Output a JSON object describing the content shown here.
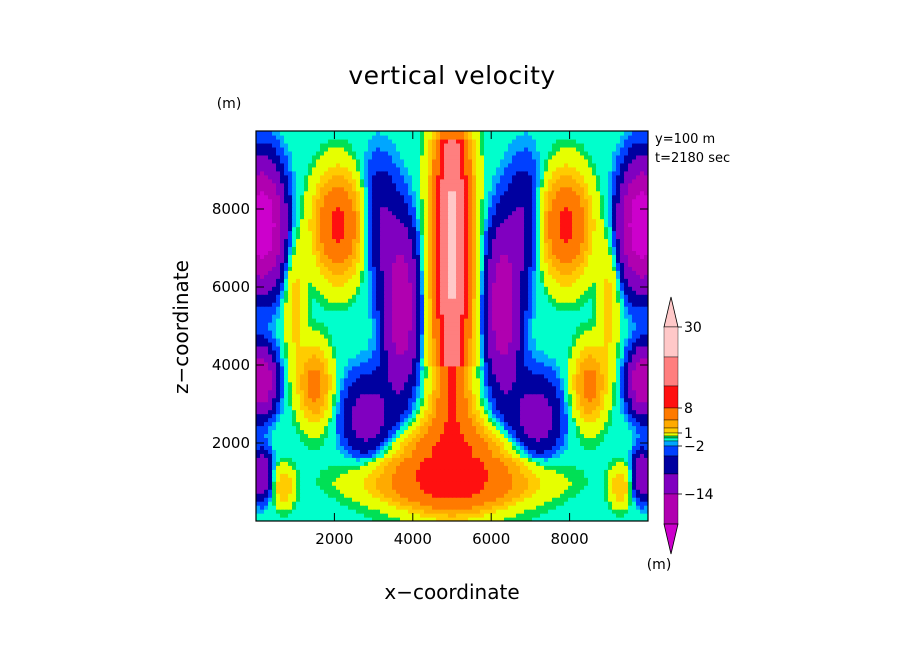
{
  "chart_data": {
    "type": "heatmap",
    "title": "vertical velocity",
    "xlabel": "x−coordinate",
    "ylabel": "z−coordinate",
    "x_unit": "(m)",
    "y_unit": "(m)",
    "xlim": [
      0,
      10000
    ],
    "ylim": [
      0,
      10000
    ],
    "xticks": [
      2000,
      4000,
      6000,
      8000
    ],
    "xtick_labels": [
      "2000",
      "4000",
      "6000",
      "8000"
    ],
    "yticks": [
      2000,
      4000,
      6000,
      8000
    ],
    "ytick_labels": [
      "2000",
      "4000",
      "6000",
      "8000"
    ],
    "annotations": [
      "y=100 m",
      "t=2180 sec"
    ],
    "colorbar": {
      "unit": "(m)",
      "levels": [
        30,
        20,
        14,
        8,
        5,
        3,
        1,
        0.5,
        -0.5,
        -1,
        -2,
        -4,
        -8,
        -14,
        -20
      ],
      "labels": [
        {
          "value": 30,
          "text": "30"
        },
        {
          "value": 8,
          "text": "8"
        },
        {
          "value": 1,
          "text": "1"
        },
        {
          "value": -2,
          "text": "−2"
        },
        {
          "value": -14,
          "text": "−14"
        }
      ],
      "colors": [
        "#ffc8c8",
        "#ff7f7f",
        "#ff1010",
        "#ff7a00",
        "#ffaa00",
        "#ffcc00",
        "#e6ff00",
        "#00e055",
        "#00ffcc",
        "#00a6ff",
        "#0040ff",
        "#0000a0",
        "#8000c0",
        "#b000b0",
        "#cc00cc"
      ],
      "extend": "both"
    },
    "field_center_max": 30,
    "field_min": -20,
    "features": [
      {
        "kind": "updraft_plume",
        "x": 5000,
        "z_bottom": 500,
        "z_top": 9800,
        "peak": 30
      },
      {
        "kind": "downdraft",
        "x": 3700,
        "z": 5500,
        "value": -14
      },
      {
        "kind": "downdraft",
        "x": 6300,
        "z": 5500,
        "value": -14
      },
      {
        "kind": "updraft_cell",
        "x": 2100,
        "z": 7600,
        "value": 14
      },
      {
        "kind": "updraft_cell",
        "x": 7900,
        "z": 7600,
        "value": 14
      },
      {
        "kind": "updraft_cell",
        "x": 1500,
        "z": 3500,
        "value": 8
      },
      {
        "kind": "updraft_cell",
        "x": 8500,
        "z": 3500,
        "value": 8
      },
      {
        "kind": "downdraft",
        "x": 300,
        "z": 7700,
        "value": -20
      },
      {
        "kind": "downdraft",
        "x": 9700,
        "z": 7700,
        "value": -20
      }
    ]
  }
}
